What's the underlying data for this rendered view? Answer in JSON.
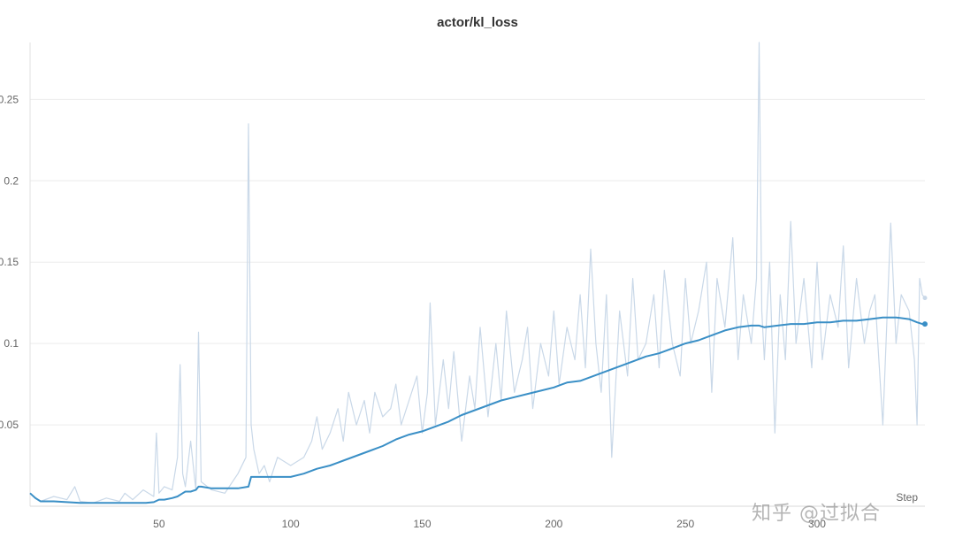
{
  "chart_data": {
    "type": "line",
    "title": "actor/kl_loss",
    "xlabel": "Step",
    "ylabel": "",
    "xlim": [
      1,
      341
    ],
    "ylim": [
      0,
      0.285
    ],
    "x_ticks": [
      50,
      100,
      150,
      200,
      250,
      300
    ],
    "y_ticks": [
      0.05,
      0.1,
      0.15,
      0.2,
      0.25
    ],
    "y_tick_labels": [
      "0.05",
      "0.1",
      "0.15",
      "0.2",
      "0.25"
    ],
    "grid": true,
    "colors": {
      "raw": "#c9d8e8",
      "smoothed": "#3a8fc6"
    },
    "series": [
      {
        "role": "raw",
        "x": [
          1,
          5,
          10,
          15,
          18,
          20,
          25,
          30,
          35,
          37,
          40,
          44,
          48,
          49,
          50,
          52,
          55,
          57,
          58,
          59,
          60,
          62,
          64,
          65,
          66,
          70,
          75,
          80,
          83,
          84,
          85,
          86,
          88,
          90,
          92,
          95,
          100,
          105,
          108,
          110,
          112,
          115,
          118,
          120,
          122,
          125,
          128,
          130,
          132,
          135,
          138,
          140,
          142,
          145,
          148,
          150,
          152,
          153,
          155,
          158,
          160,
          162,
          165,
          168,
          170,
          172,
          175,
          178,
          180,
          182,
          185,
          188,
          190,
          192,
          195,
          198,
          200,
          202,
          205,
          208,
          210,
          212,
          214,
          216,
          218,
          220,
          222,
          225,
          228,
          230,
          232,
          235,
          238,
          240,
          242,
          245,
          248,
          250,
          252,
          255,
          258,
          260,
          262,
          265,
          268,
          270,
          272,
          275,
          277,
          278,
          279,
          280,
          282,
          284,
          286,
          288,
          290,
          292,
          295,
          298,
          300,
          302,
          305,
          308,
          310,
          312,
          315,
          318,
          320,
          322,
          325,
          328,
          330,
          332,
          335,
          337,
          338,
          339,
          340,
          341
        ],
        "y": [
          0.008,
          0.003,
          0.006,
          0.004,
          0.012,
          0.003,
          0.002,
          0.005,
          0.003,
          0.008,
          0.004,
          0.01,
          0.006,
          0.045,
          0.008,
          0.012,
          0.01,
          0.03,
          0.087,
          0.02,
          0.012,
          0.04,
          0.01,
          0.107,
          0.015,
          0.01,
          0.008,
          0.02,
          0.03,
          0.235,
          0.05,
          0.035,
          0.02,
          0.025,
          0.015,
          0.03,
          0.025,
          0.03,
          0.04,
          0.055,
          0.035,
          0.045,
          0.06,
          0.04,
          0.07,
          0.05,
          0.065,
          0.045,
          0.07,
          0.055,
          0.06,
          0.075,
          0.05,
          0.065,
          0.08,
          0.045,
          0.07,
          0.125,
          0.05,
          0.09,
          0.06,
          0.095,
          0.04,
          0.08,
          0.06,
          0.11,
          0.055,
          0.1,
          0.065,
          0.12,
          0.07,
          0.09,
          0.11,
          0.06,
          0.1,
          0.08,
          0.12,
          0.075,
          0.11,
          0.09,
          0.13,
          0.085,
          0.158,
          0.1,
          0.07,
          0.13,
          0.03,
          0.12,
          0.08,
          0.14,
          0.09,
          0.1,
          0.13,
          0.085,
          0.145,
          0.1,
          0.08,
          0.14,
          0.1,
          0.12,
          0.15,
          0.07,
          0.14,
          0.11,
          0.165,
          0.09,
          0.13,
          0.1,
          0.14,
          0.285,
          0.12,
          0.09,
          0.15,
          0.045,
          0.13,
          0.09,
          0.175,
          0.1,
          0.14,
          0.085,
          0.15,
          0.09,
          0.13,
          0.11,
          0.16,
          0.085,
          0.14,
          0.1,
          0.12,
          0.13,
          0.05,
          0.174,
          0.1,
          0.13,
          0.12,
          0.09,
          0.05,
          0.14,
          0.13,
          0.128
        ]
      },
      {
        "role": "smoothed",
        "x": [
          1,
          3,
          5,
          10,
          20,
          30,
          40,
          45,
          48,
          50,
          52,
          55,
          57,
          59,
          60,
          62,
          64,
          65,
          66,
          70,
          75,
          80,
          84,
          85,
          86,
          88,
          90,
          95,
          100,
          105,
          110,
          115,
          120,
          125,
          130,
          135,
          140,
          145,
          150,
          155,
          160,
          165,
          170,
          175,
          180,
          185,
          190,
          195,
          200,
          205,
          210,
          215,
          220,
          225,
          230,
          235,
          240,
          245,
          250,
          255,
          260,
          265,
          270,
          275,
          277,
          278,
          280,
          285,
          290,
          295,
          300,
          305,
          310,
          315,
          320,
          325,
          330,
          335,
          338,
          340,
          341
        ],
        "y": [
          0.008,
          0.005,
          0.003,
          0.003,
          0.002,
          0.002,
          0.002,
          0.002,
          0.0025,
          0.004,
          0.004,
          0.005,
          0.006,
          0.008,
          0.009,
          0.009,
          0.01,
          0.012,
          0.012,
          0.011,
          0.011,
          0.011,
          0.012,
          0.018,
          0.018,
          0.018,
          0.018,
          0.018,
          0.018,
          0.02,
          0.023,
          0.025,
          0.028,
          0.031,
          0.034,
          0.037,
          0.041,
          0.044,
          0.046,
          0.049,
          0.052,
          0.056,
          0.059,
          0.062,
          0.065,
          0.067,
          0.069,
          0.071,
          0.073,
          0.076,
          0.077,
          0.08,
          0.083,
          0.086,
          0.089,
          0.092,
          0.094,
          0.097,
          0.1,
          0.102,
          0.105,
          0.108,
          0.11,
          0.111,
          0.111,
          0.111,
          0.11,
          0.111,
          0.112,
          0.112,
          0.113,
          0.113,
          0.114,
          0.114,
          0.115,
          0.116,
          0.116,
          0.115,
          0.113,
          0.112,
          0.112
        ]
      }
    ]
  },
  "watermark_text": "知乎 @过拟合"
}
